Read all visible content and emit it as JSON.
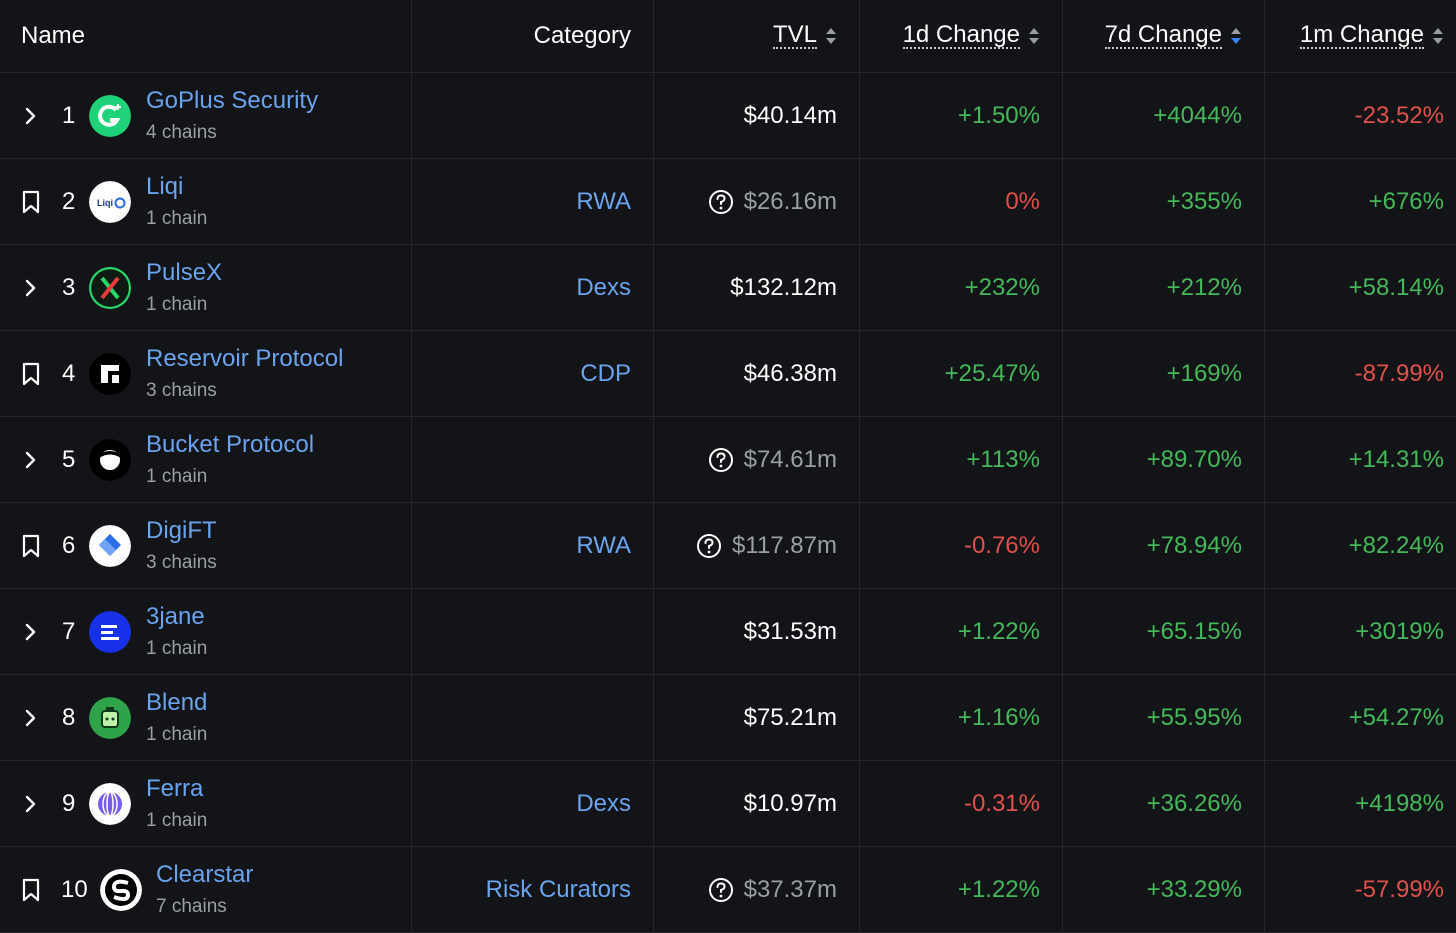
{
  "header": {
    "name": "Name",
    "category": "Category",
    "tvl": "TVL",
    "change_1d": "1d Change",
    "change_7d": "7d Change",
    "change_1m": "1m Change"
  },
  "rows": [
    {
      "rank": "1",
      "expander": "chevron",
      "name": "GoPlus Security",
      "chains": "4 chains",
      "category": "",
      "tvl": "$40.14m",
      "tvl_unverified": false,
      "d1": "+1.50%",
      "d7": "+4044%",
      "m1": "-23.52%",
      "logo": "goplus-logo",
      "logo_bg": "#1fd27a"
    },
    {
      "rank": "2",
      "expander": "bookmark",
      "name": "Liqi",
      "chains": "1 chain",
      "category": "RWA",
      "tvl": "$26.16m",
      "tvl_unverified": true,
      "d1": "0%",
      "d7": "+355%",
      "m1": "+676%",
      "logo": "liqi-logo",
      "logo_bg": "#ffffff",
      "logo_text": "Liqi"
    },
    {
      "rank": "3",
      "expander": "chevron",
      "name": "PulseX",
      "chains": "1 chain",
      "category": "Dexs",
      "tvl": "$132.12m",
      "tvl_unverified": false,
      "d1": "+232%",
      "d7": "+212%",
      "m1": "+58.14%",
      "logo": "pulsex-logo",
      "logo_bg": "#0e1a12"
    },
    {
      "rank": "4",
      "expander": "bookmark",
      "name": "Reservoir Protocol",
      "chains": "3 chains",
      "category": "CDP",
      "tvl": "$46.38m",
      "tvl_unverified": false,
      "d1": "+25.47%",
      "d7": "+169%",
      "m1": "-87.99%",
      "logo": "reservoir-logo",
      "logo_bg": "#000000"
    },
    {
      "rank": "5",
      "expander": "chevron",
      "name": "Bucket Protocol",
      "chains": "1 chain",
      "category": "",
      "tvl": "$74.61m",
      "tvl_unverified": true,
      "d1": "+113%",
      "d7": "+89.70%",
      "m1": "+14.31%",
      "logo": "bucket-logo",
      "logo_bg": "#000000"
    },
    {
      "rank": "6",
      "expander": "bookmark",
      "name": "DigiFT",
      "chains": "3 chains",
      "category": "RWA",
      "tvl": "$117.87m",
      "tvl_unverified": true,
      "d1": "-0.76%",
      "d7": "+78.94%",
      "m1": "+82.24%",
      "logo": "digift-logo",
      "logo_bg": "#ffffff"
    },
    {
      "rank": "7",
      "expander": "chevron",
      "name": "3jane",
      "chains": "1 chain",
      "category": "",
      "tvl": "$31.53m",
      "tvl_unverified": false,
      "d1": "+1.22%",
      "d7": "+65.15%",
      "m1": "+3019%",
      "logo": "3jane-logo",
      "logo_bg": "#1631e8"
    },
    {
      "rank": "8",
      "expander": "chevron",
      "name": "Blend",
      "chains": "1 chain",
      "category": "",
      "tvl": "$75.21m",
      "tvl_unverified": false,
      "d1": "+1.16%",
      "d7": "+55.95%",
      "m1": "+54.27%",
      "logo": "blend-logo",
      "logo_bg": "#2ea34a"
    },
    {
      "rank": "9",
      "expander": "chevron",
      "name": "Ferra",
      "chains": "1 chain",
      "category": "Dexs",
      "tvl": "$10.97m",
      "tvl_unverified": false,
      "d1": "-0.31%",
      "d7": "+36.26%",
      "m1": "+4198%",
      "logo": "ferra-logo",
      "logo_bg": "#ffffff"
    },
    {
      "rank": "10",
      "expander": "bookmark",
      "name": "Clearstar",
      "chains": "7 chains",
      "category": "Risk Curators",
      "tvl": "$37.37m",
      "tvl_unverified": true,
      "d1": "+1.22%",
      "d7": "+33.29%",
      "m1": "-57.99%",
      "logo": "clearstar-logo",
      "logo_bg": "#ffffff"
    }
  ],
  "colors": {
    "background": "#131417",
    "link": "#6aa3ee",
    "positive": "#45b85a",
    "negative": "#e0514b",
    "muted": "#9b9ea4",
    "sort_active": "#3b82f6"
  }
}
